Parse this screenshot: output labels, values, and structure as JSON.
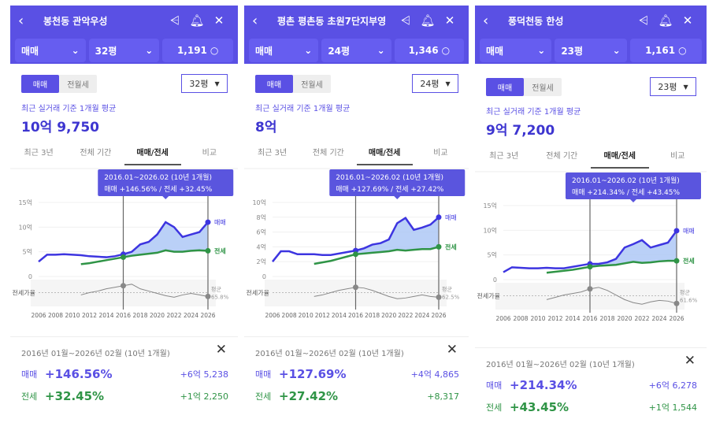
{
  "panels": [
    {
      "title": "봉천동 관악우성",
      "type": "매매",
      "size": "32평",
      "count": "1,191",
      "toggle": [
        "매매",
        "전월세"
      ],
      "size_select": "32평",
      "subtitle": "최근 실거래 기준 1개월 평균",
      "price": "10억 9,750",
      "tabs": [
        "최근 3년",
        "전체 기간",
        "매매/전세",
        "비교"
      ],
      "tooltip": {
        "range": "2016.01~2026.02 (10년 1개월)",
        "text": "매매 +146.56%  /  전세 +32.45%"
      },
      "card": {
        "date": "2016년 01월~2026년 02월 (10년 1개월)",
        "sale_label": "매매",
        "sale_pct": "+146.56%",
        "sale_amt": "+6억 5,238",
        "jeonse_label": "전세",
        "jeonse_pct": "+32.45%",
        "jeonse_amt": "+1억 2,250"
      }
    },
    {
      "title": "평촌 평촌동 초원7단지부영",
      "type": "매매",
      "size": "24평",
      "count": "1,346",
      "toggle": [
        "매매",
        "전월세"
      ],
      "size_select": "24평",
      "subtitle": "최근 실거래 기준 1개월 평균",
      "price": "8억",
      "tabs": [
        "최근 3년",
        "전체 기간",
        "매매/전세",
        "비교"
      ],
      "tooltip": {
        "range": "2016.01~2026.02 (10년 1개월)",
        "text": "매매 +127.69%  /  전세 +27.42%"
      },
      "card": {
        "date": "2016년 01월~2026년 02월 (10년 1개월)",
        "sale_label": "매매",
        "sale_pct": "+127.69%",
        "sale_amt": "+4억 4,865",
        "jeonse_label": "전세",
        "jeonse_pct": "+27.42%",
        "jeonse_amt": "+8,317"
      }
    },
    {
      "title": "풍덕천동 한성",
      "type": "매매",
      "size": "23평",
      "count": "1,161",
      "toggle": [
        "매매",
        "전월세"
      ],
      "size_select": "23평",
      "subtitle": "최근 실거래 기준 1개월 평균",
      "price": "9억 7,200",
      "tabs": [
        "최근 3년",
        "전체 기간",
        "매매/전세",
        "비교"
      ],
      "tooltip": {
        "range": "2016.01~2026.02 (10년 1개월)",
        "text": "매매 +214.34%  /  전세 +43.45%"
      },
      "card": {
        "date": "2016년 01월~2026년 02월 (10년 1개월)",
        "sale_label": "매매",
        "sale_pct": "+214.34%",
        "sale_amt": "+6억 6,278",
        "jeonse_label": "전세",
        "jeonse_pct": "+43.45%",
        "jeonse_amt": "+1억 1,544"
      }
    }
  ],
  "colors": {
    "accent": "#5a50e4",
    "sale": "#3d35e0",
    "jeonse": "#2f9446",
    "rate": "#888888",
    "area": "#a9c4f5"
  },
  "chart_data": [
    {
      "type": "line",
      "x": [
        2006,
        2007,
        2008,
        2009,
        2010,
        2011,
        2012,
        2013,
        2014,
        2015,
        2016,
        2017,
        2018,
        2019,
        2020,
        2021,
        2022,
        2023,
        2024,
        2025,
        2026
      ],
      "yticks": [
        "0",
        "5억",
        "10억",
        "15억"
      ],
      "ylim": [
        0,
        15
      ],
      "xticks": [
        "2006",
        "2008",
        "2010",
        "2012",
        "2014",
        "2016",
        "2018",
        "2020",
        "2022",
        "2024",
        "2026"
      ],
      "series": [
        {
          "name": "매매",
          "values": [
            3.0,
            4.4,
            4.4,
            4.5,
            4.4,
            4.3,
            4.1,
            4.0,
            3.9,
            4.1,
            4.5,
            5.0,
            6.5,
            7.0,
            8.5,
            11.0,
            10.0,
            8.0,
            8.5,
            9.0,
            11.0
          ]
        },
        {
          "name": "전세",
          "values": [
            null,
            null,
            null,
            null,
            null,
            2.5,
            2.7,
            3.0,
            3.3,
            3.6,
            3.9,
            4.2,
            4.4,
            4.6,
            4.8,
            5.3,
            5.0,
            5.0,
            5.2,
            5.3,
            5.2
          ]
        }
      ],
      "rate": {
        "label": "전세가율",
        "avg_label": "평균",
        "avg": "65.8%",
        "values": [
          null,
          null,
          null,
          null,
          null,
          60,
          63,
          65,
          68,
          70,
          72,
          74,
          68,
          65,
          62,
          59,
          57,
          60,
          62,
          60,
          58
        ]
      }
    },
    {
      "type": "line",
      "x": [
        2006,
        2007,
        2008,
        2009,
        2010,
        2011,
        2012,
        2013,
        2014,
        2015,
        2016,
        2017,
        2018,
        2019,
        2020,
        2021,
        2022,
        2023,
        2024,
        2025,
        2026
      ],
      "yticks": [
        "0",
        "2억",
        "4억",
        "6억",
        "8억",
        "10억"
      ],
      "ylim": [
        0,
        10
      ],
      "xticks": [
        "2006",
        "2008",
        "2010",
        "2012",
        "2014",
        "2016",
        "2018",
        "2020",
        "2022",
        "2024",
        "2026"
      ],
      "series": [
        {
          "name": "매매",
          "values": [
            2.0,
            3.4,
            3.4,
            3.0,
            3.0,
            3.0,
            2.9,
            2.9,
            3.1,
            3.3,
            3.5,
            3.8,
            4.3,
            4.5,
            5.0,
            7.2,
            7.9,
            6.3,
            6.6,
            7.0,
            8.0
          ]
        },
        {
          "name": "전세",
          "values": [
            null,
            null,
            null,
            null,
            null,
            1.7,
            1.9,
            2.1,
            2.4,
            2.7,
            3.0,
            3.1,
            3.2,
            3.3,
            3.4,
            3.6,
            3.5,
            3.6,
            3.7,
            3.7,
            4.0
          ]
        }
      ],
      "rate": {
        "label": "전세가율",
        "avg_label": "평균",
        "avg": "62.5%",
        "values": [
          null,
          null,
          null,
          null,
          null,
          58,
          60,
          63,
          66,
          68,
          70,
          69,
          66,
          62,
          58,
          55,
          56,
          58,
          60,
          58,
          57
        ]
      }
    },
    {
      "type": "line",
      "x": [
        2006,
        2007,
        2008,
        2009,
        2010,
        2011,
        2012,
        2013,
        2014,
        2015,
        2016,
        2017,
        2018,
        2019,
        2020,
        2021,
        2022,
        2023,
        2024,
        2025,
        2026
      ],
      "yticks": [
        "0",
        "5억",
        "10억",
        "15억"
      ],
      "ylim": [
        0,
        15
      ],
      "xticks": [
        "2006",
        "2008",
        "2010",
        "2012",
        "2014",
        "2016",
        "2018",
        "2020",
        "2022",
        "2024",
        "2026"
      ],
      "series": [
        {
          "name": "매매",
          "values": [
            1.5,
            2.5,
            2.4,
            2.3,
            2.3,
            2.4,
            2.3,
            2.3,
            2.6,
            2.9,
            3.2,
            3.2,
            3.5,
            4.2,
            6.5,
            7.2,
            8.0,
            6.5,
            7.0,
            7.5,
            9.9
          ]
        },
        {
          "name": "전세",
          "values": [
            null,
            null,
            null,
            null,
            null,
            1.4,
            1.6,
            1.8,
            2.0,
            2.3,
            2.6,
            2.8,
            2.9,
            3.0,
            3.3,
            3.6,
            3.4,
            3.5,
            3.7,
            3.8,
            3.8
          ]
        }
      ],
      "rate": {
        "label": "전세가율",
        "avg_label": "평균",
        "avg": "61.6%",
        "values": [
          null,
          null,
          null,
          null,
          null,
          58,
          61,
          64,
          66,
          68,
          72,
          74,
          70,
          64,
          58,
          54,
          52,
          55,
          57,
          56,
          53
        ]
      }
    }
  ]
}
